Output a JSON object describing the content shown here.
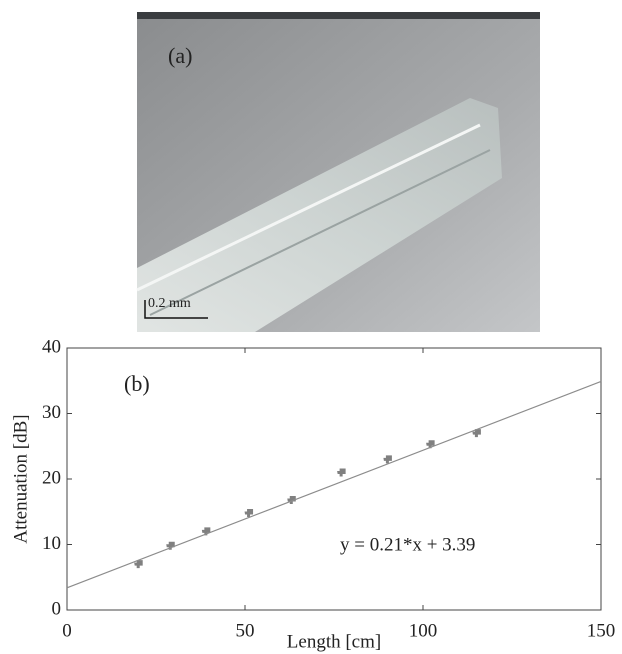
{
  "panel_a": {
    "label": "(a)",
    "scale_bar": "0.2 mm"
  },
  "chart_data": {
    "type": "scatter",
    "label": "(b)",
    "x_label": "Length [cm]",
    "y_label": "Attenuation [dB]",
    "annotation": "y = 0.21*x + 3.39",
    "xlim": [
      0,
      150
    ],
    "xticks": [
      0,
      50,
      100,
      150
    ],
    "ylim": [
      0,
      40
    ],
    "yticks": [
      0,
      10,
      20,
      30,
      40
    ],
    "series": [
      {
        "type": "scatter",
        "color": "#808080",
        "x": [
          20,
          29,
          39,
          51,
          63,
          77,
          90,
          102,
          115
        ],
        "values": [
          7,
          9.8,
          12,
          14.8,
          16.8,
          21,
          23,
          25.3,
          27
        ]
      },
      {
        "type": "line",
        "color": "#8c8c8c",
        "x": [
          0,
          150
        ],
        "values": [
          3.39,
          34.89
        ]
      }
    ]
  }
}
